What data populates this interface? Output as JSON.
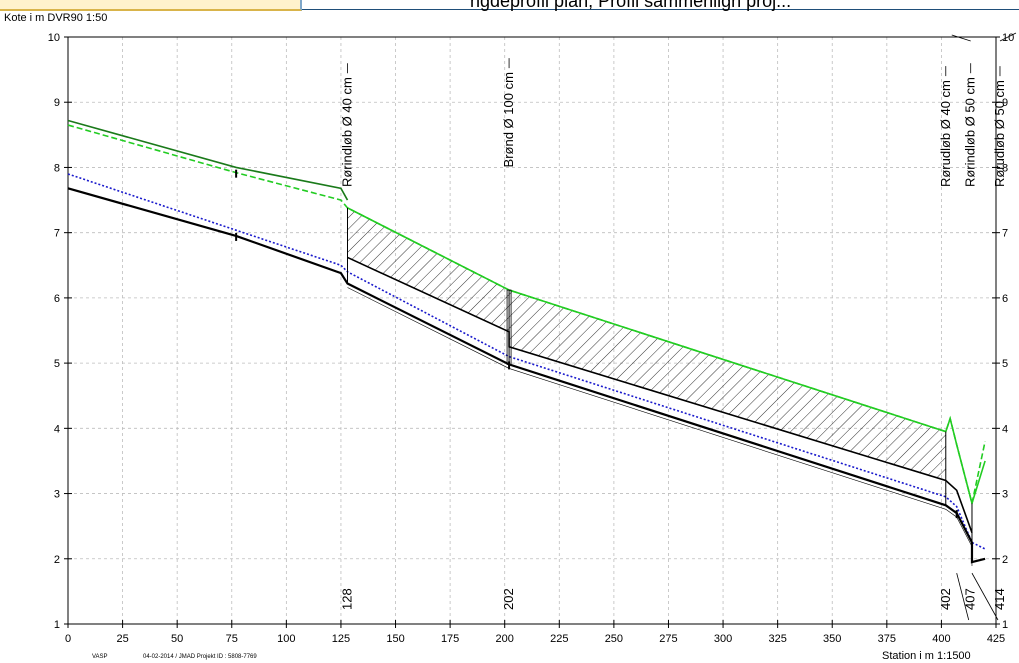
{
  "header": {
    "title_fragment": "ngdeprofil plan, Profil sammenlign proj..."
  },
  "footer": {
    "left_code": "VASP",
    "stamp": "04-02-2014 / JMAD  Projekt ID : 5808-7769"
  },
  "chart_data": {
    "type": "line",
    "ylabel": "Kote i m DVR90 1:50",
    "xlabel": "Station i m  1:1500",
    "xlim": [
      0,
      425
    ],
    "ylim": [
      1,
      10
    ],
    "x_ticks": [
      0,
      25,
      50,
      75,
      100,
      125,
      150,
      175,
      200,
      225,
      250,
      275,
      300,
      325,
      350,
      375,
      400,
      425
    ],
    "y_ticks": [
      1,
      2,
      3,
      4,
      5,
      6,
      7,
      8,
      9,
      10
    ],
    "grid": true,
    "legend": "none",
    "station_labels": [
      {
        "x": 128,
        "text": "128"
      },
      {
        "x": 202,
        "text": "202"
      },
      {
        "x": 402,
        "text": "402"
      },
      {
        "x": 407,
        "text": "407"
      },
      {
        "x": 414,
        "text": "414"
      }
    ],
    "annotations": [
      {
        "x": 128,
        "y": 7.7,
        "text": "Rørindløb Ø 40 cm"
      },
      {
        "x": 202,
        "y": 8.0,
        "text": "Brønd Ø 100 cm"
      },
      {
        "x": 402,
        "y": 7.7,
        "text": "Rørudløb Ø 40 cm"
      },
      {
        "x": 407,
        "y": 7.7,
        "text": "Rørindløb Ø 50 cm"
      },
      {
        "x": 414,
        "y": 7.7,
        "text": "Rørudløb Ø 50 cm"
      }
    ],
    "series": [
      {
        "role": "terrain-existing",
        "color": "#1a7a1a",
        "dash": "solid",
        "points": [
          [
            0,
            8.72
          ],
          [
            77,
            8.0
          ],
          [
            125,
            7.68
          ],
          [
            128,
            7.5
          ]
        ]
      },
      {
        "role": "terrain-new",
        "color": "#22cc22",
        "dash": "dashed",
        "points": [
          [
            0,
            8.65
          ],
          [
            77,
            7.92
          ],
          [
            125,
            7.5
          ],
          [
            128,
            7.38
          ],
          [
            202,
            6.12
          ],
          [
            402,
            3.95
          ],
          [
            404,
            4.15
          ],
          [
            407,
            3.75
          ],
          [
            414,
            2.85
          ],
          [
            420,
            3.8
          ]
        ]
      },
      {
        "role": "terrain-line",
        "color": "#22cc22",
        "dash": "solid",
        "points": [
          [
            128,
            7.38
          ],
          [
            202,
            6.12
          ],
          [
            402,
            3.95
          ],
          [
            404,
            4.15
          ],
          [
            407,
            3.75
          ],
          [
            414,
            2.85
          ],
          [
            420,
            3.5
          ]
        ]
      },
      {
        "role": "water-level",
        "color": "#1a1acc",
        "dash": "dotted",
        "points": [
          [
            0,
            7.9
          ],
          [
            125,
            6.5
          ],
          [
            128,
            6.4
          ],
          [
            202,
            5.1
          ],
          [
            402,
            2.95
          ],
          [
            407,
            2.8
          ],
          [
            414,
            2.25
          ],
          [
            420,
            2.15
          ]
        ]
      },
      {
        "role": "pipe-top",
        "color": "#000000",
        "dash": "solid",
        "points": [
          [
            128,
            6.62
          ],
          [
            202,
            5.48
          ],
          [
            202,
            5.25
          ],
          [
            402,
            3.2
          ],
          [
            407,
            3.05
          ],
          [
            414,
            2.4
          ]
        ]
      },
      {
        "role": "pipe-bottom",
        "color": "#000000",
        "dash": "solid",
        "points": [
          [
            0,
            7.68
          ],
          [
            77,
            6.95
          ],
          [
            125,
            6.38
          ],
          [
            128,
            6.22
          ],
          [
            202,
            4.98
          ],
          [
            402,
            2.82
          ],
          [
            407,
            2.7
          ],
          [
            414,
            2.25
          ],
          [
            414,
            1.95
          ],
          [
            420,
            2.0
          ]
        ]
      }
    ],
    "hatch_polygon": [
      [
        128,
        7.38
      ],
      [
        202,
        6.12
      ],
      [
        402,
        3.95
      ],
      [
        402,
        3.2
      ],
      [
        202,
        5.25
      ],
      [
        202,
        5.48
      ],
      [
        128,
        6.62
      ]
    ]
  }
}
